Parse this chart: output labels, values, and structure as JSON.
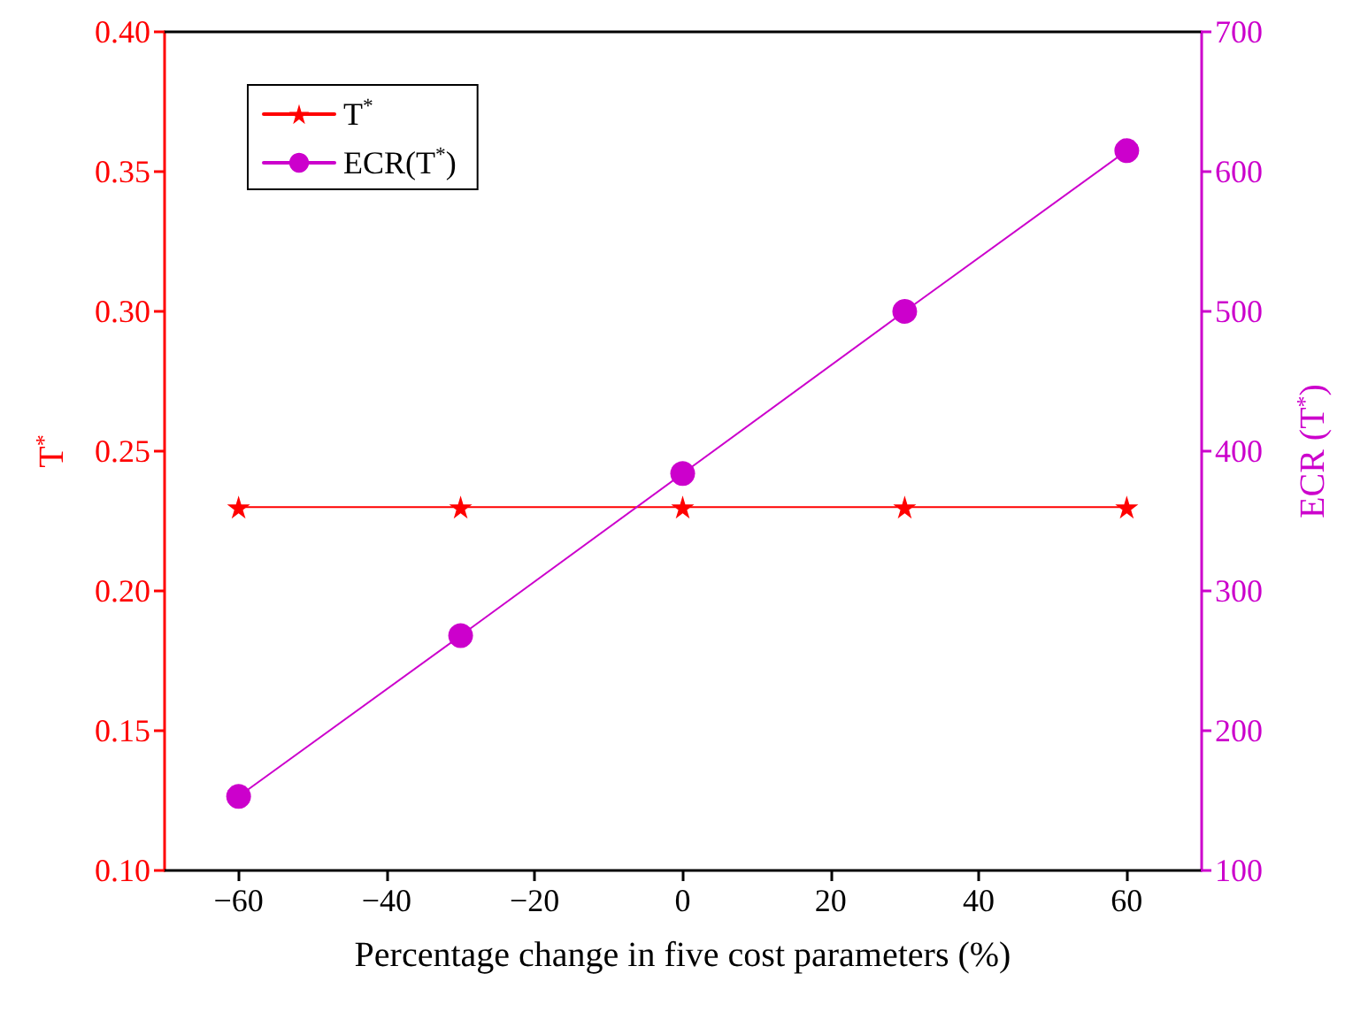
{
  "chart_data": {
    "type": "line",
    "xlabel": "Percentage change in five cost parameters (%)",
    "ylabel": "T$^{*}$",
    "y2label": "ECR (T$^{*}$)",
    "x": [
      -60,
      -30,
      0,
      30,
      60
    ],
    "series": [
      {
        "name": "T$^{*}$",
        "color": "#ff0000",
        "values": [
          0.23,
          0.23,
          0.23,
          0.23,
          0.23
        ],
        "marker": "star"
      },
      {
        "name": "ECR(T$^{*}$)",
        "color": "#cc00cc",
        "values": [
          153,
          268,
          384,
          500,
          615
        ],
        "marker": "circle",
        "axis": "y2"
      }
    ],
    "xlim": [
      -70,
      70
    ],
    "xticks": [
      {
        "value": -60,
        "label": "−60"
      },
      {
        "value": -40,
        "label": "−40"
      },
      {
        "value": -20,
        "label": "−20"
      },
      0,
      20,
      40,
      60
    ],
    "ylim": [
      0.1,
      0.4
    ],
    "yticks": [
      {
        "value": 0.1,
        "label": "0.10"
      },
      {
        "value": 0.15,
        "label": "0.15"
      },
      {
        "value": 0.2,
        "label": "0.20"
      },
      {
        "value": 0.25,
        "label": "0.25"
      },
      {
        "value": 0.3,
        "label": "0.30"
      },
      {
        "value": 0.35,
        "label": "0.35"
      },
      {
        "value": 0.4,
        "label": "0.40"
      }
    ],
    "y2lim": [
      100,
      700
    ],
    "y2ticks": [
      100,
      200,
      300,
      400,
      500,
      600,
      700
    ],
    "grid": false,
    "legend": "top left",
    "line_style": "solid"
  }
}
